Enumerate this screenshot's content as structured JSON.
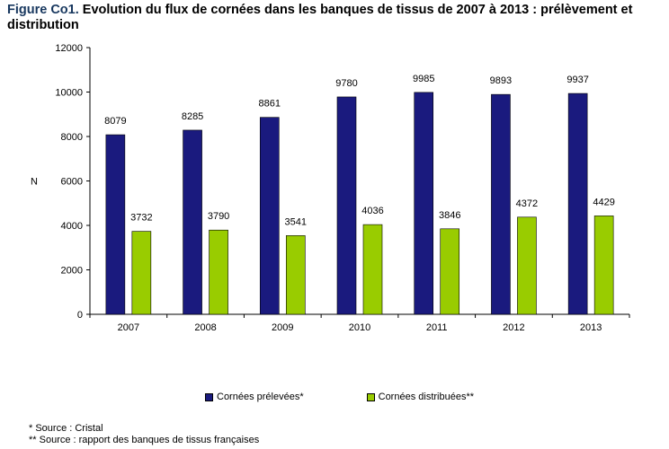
{
  "header": {
    "lead": "Figure Co1.",
    "title": "Evolution du flux de cornées dans les banques de tissus de 2007 à 2013 : prélèvement et distribution"
  },
  "chart_data": {
    "type": "bar",
    "categories": [
      "2007",
      "2008",
      "2009",
      "2010",
      "2011",
      "2012",
      "2013"
    ],
    "series": [
      {
        "name": "Cornées prélevées*",
        "color": "#1a1a7e",
        "values": [
          8079,
          8285,
          8861,
          9780,
          9985,
          9893,
          9937
        ]
      },
      {
        "name": "Cornées distribuées**",
        "color": "#99cc00",
        "values": [
          3732,
          3790,
          3541,
          4036,
          3846,
          4372,
          4429
        ]
      }
    ],
    "ylabel": "N",
    "ylim": [
      0,
      12000
    ],
    "yticks": [
      0,
      2000,
      4000,
      6000,
      8000,
      10000,
      12000
    ],
    "grid": false,
    "legend_position": "bottom"
  },
  "notes": [
    "* Source : Cristal",
    "** Source : rapport des banques de tissus françaises"
  ]
}
